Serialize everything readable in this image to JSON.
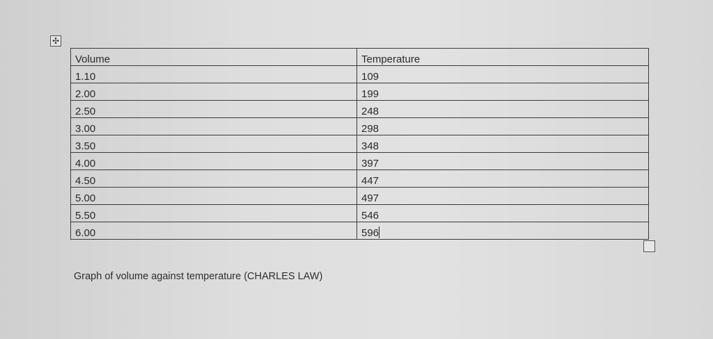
{
  "table": {
    "headers": [
      "Volume",
      "Temperature"
    ],
    "rows": [
      [
        "1.10",
        "109"
      ],
      [
        "2.00",
        "199"
      ],
      [
        "2.50",
        "248"
      ],
      [
        "3.00",
        "298"
      ],
      [
        "3.50",
        "348"
      ],
      [
        "4.00",
        "397"
      ],
      [
        "4.50",
        "447"
      ],
      [
        "5.00",
        "497"
      ],
      [
        "5.50",
        "546"
      ],
      [
        "6.00",
        "596"
      ]
    ]
  },
  "caption": "Graph of volume against temperature (CHARLES LAW)",
  "icons": {
    "move_handle": "move-arrows-icon",
    "resize_handle": "table-resize-icon"
  }
}
